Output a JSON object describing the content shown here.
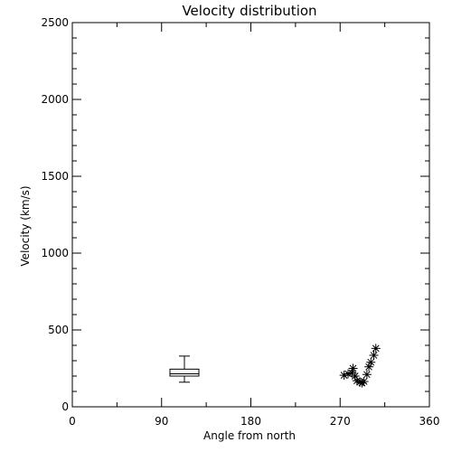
{
  "chart_data": {
    "type": "scatter",
    "title": "Velocity distribution",
    "xlabel": "Angle from north",
    "ylabel": "Velocity (km/s)",
    "xlim": [
      0,
      360
    ],
    "ylim": [
      0,
      2500
    ],
    "xticks": [
      0,
      90,
      180,
      270,
      360
    ],
    "yticks": [
      0,
      500,
      1000,
      1500,
      2000,
      2500
    ],
    "grid": false,
    "boxplot": {
      "x": 113,
      "min": 160,
      "q1": 200,
      "median": 215,
      "q3": 245,
      "max": 330
    },
    "points": [
      {
        "x": 274,
        "y": 205
      },
      {
        "x": 278,
        "y": 215
      },
      {
        "x": 282,
        "y": 220
      },
      {
        "x": 285,
        "y": 200
      },
      {
        "x": 283,
        "y": 250
      },
      {
        "x": 287,
        "y": 170
      },
      {
        "x": 290,
        "y": 160
      },
      {
        "x": 292,
        "y": 155
      },
      {
        "x": 294,
        "y": 165
      },
      {
        "x": 297,
        "y": 210
      },
      {
        "x": 299,
        "y": 260
      },
      {
        "x": 301,
        "y": 290
      },
      {
        "x": 304,
        "y": 335
      },
      {
        "x": 306,
        "y": 380
      }
    ]
  }
}
